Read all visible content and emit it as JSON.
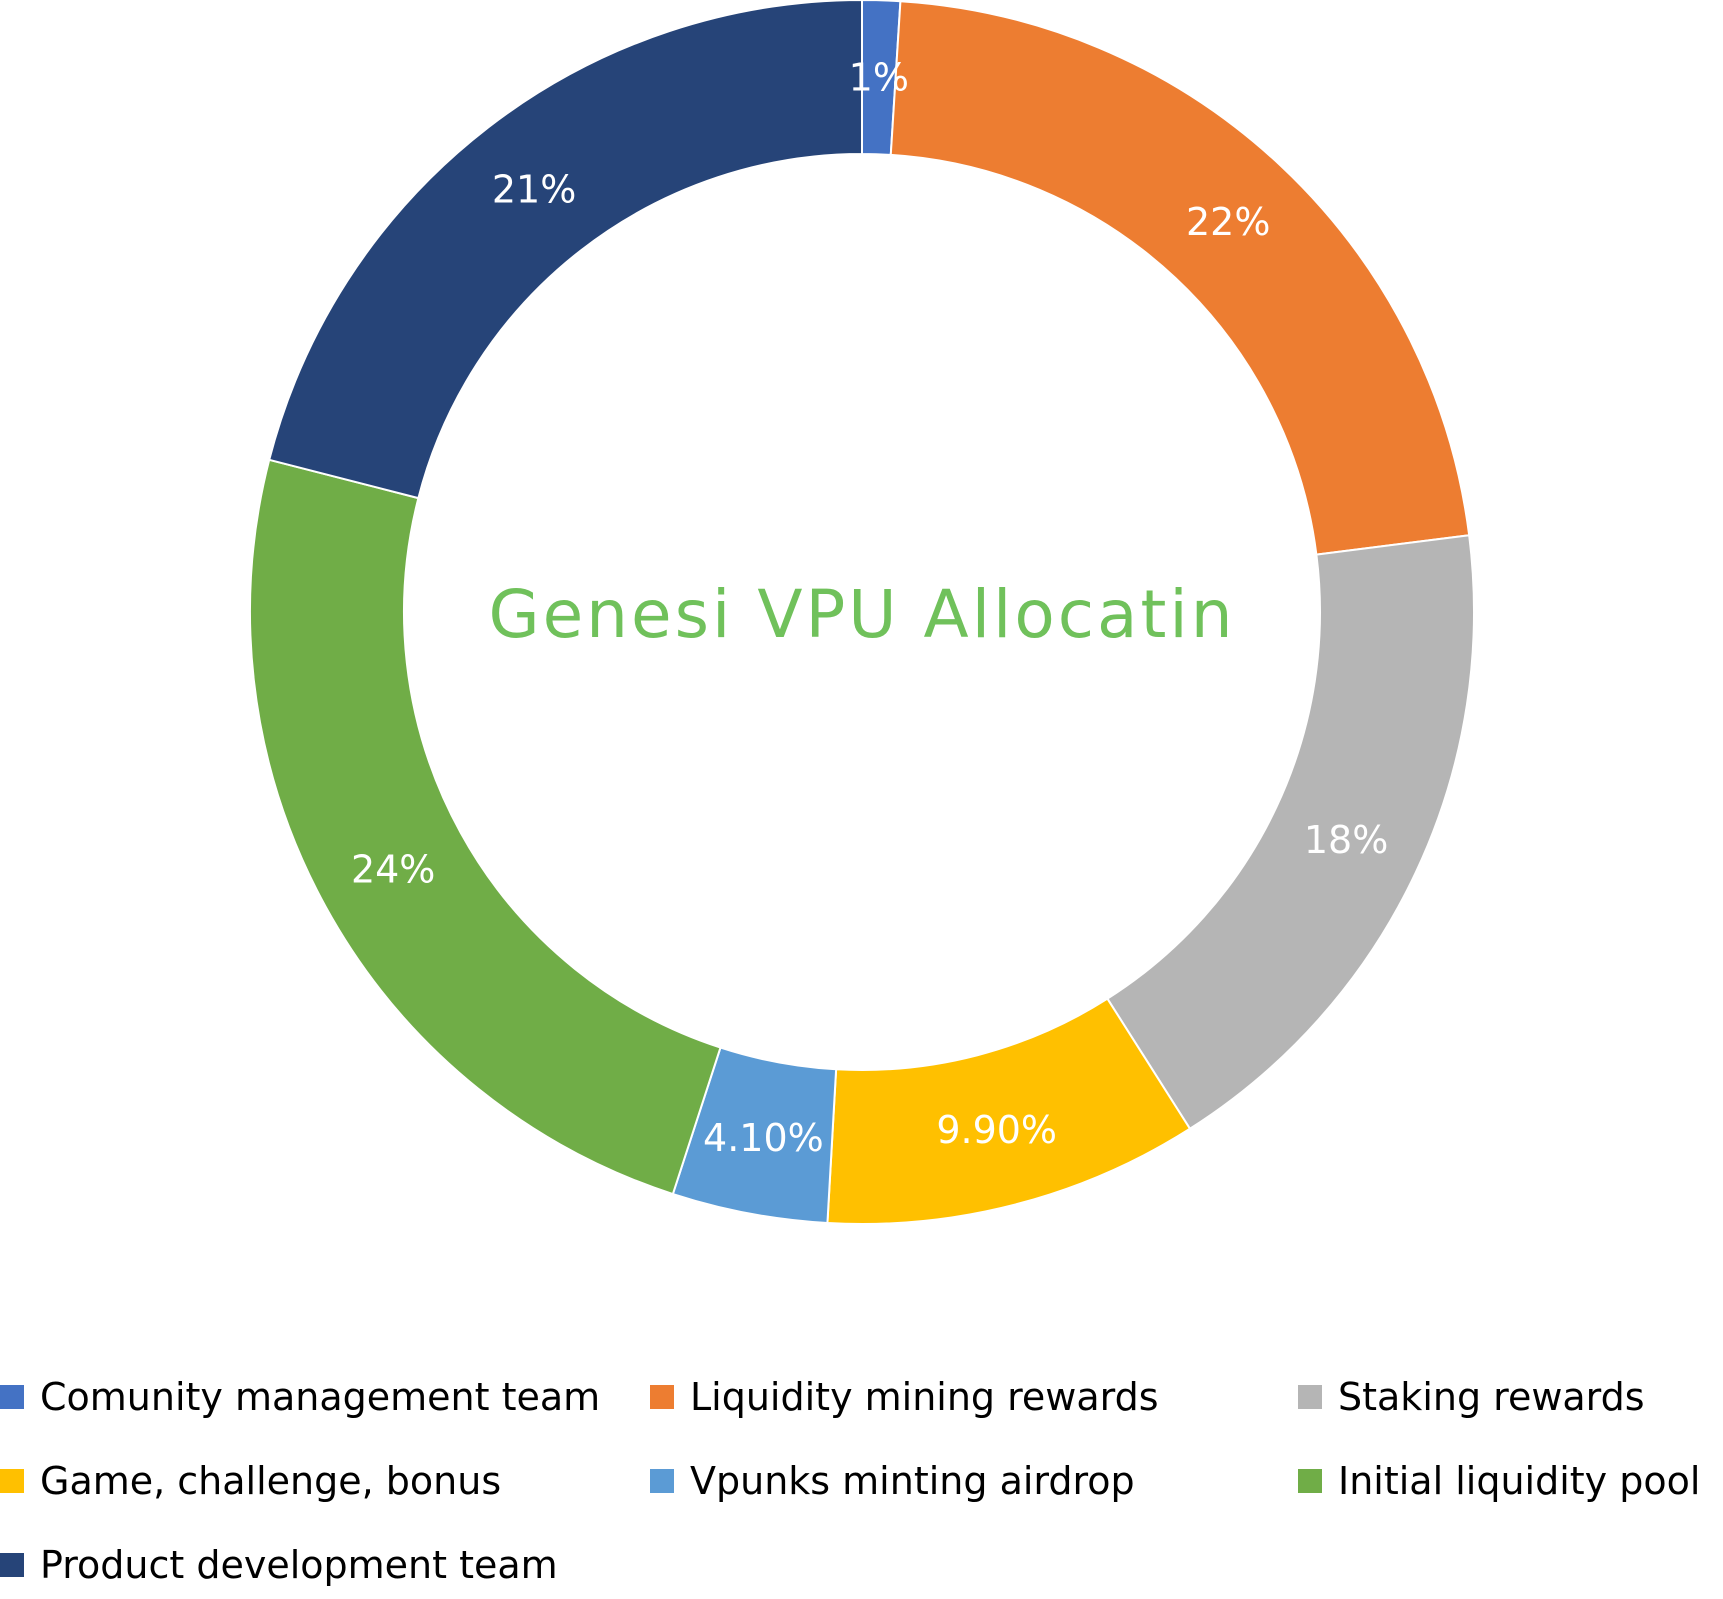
{
  "chart_data": {
    "type": "pie",
    "variant": "donut",
    "title": "Genesi VPU Allocatin",
    "title_color": "#70c15b",
    "legend_placement": "bottom",
    "slices": [
      {
        "name": "Comunity management team",
        "value": 1,
        "label": "1%",
        "color": "#4472c4"
      },
      {
        "name": "Liquidity mining rewards",
        "value": 22,
        "label": "22%",
        "color": "#ed7d31"
      },
      {
        "name": "Staking rewards",
        "value": 18,
        "label": "18%",
        "color": "#b5b5b5"
      },
      {
        "name": "Game, challenge, bonus",
        "value": 9.9,
        "label": "9.90%",
        "color": "#ffc000"
      },
      {
        "name": "Vpunks minting airdrop",
        "value": 4.1,
        "label": "4.10%",
        "color": "#5b9bd5"
      },
      {
        "name": "Initial liquidity pool",
        "value": 24,
        "label": "24%",
        "color": "#70ad47"
      },
      {
        "name": "Product development team",
        "value": 21,
        "label": "21%",
        "color": "#264478"
      }
    ]
  }
}
